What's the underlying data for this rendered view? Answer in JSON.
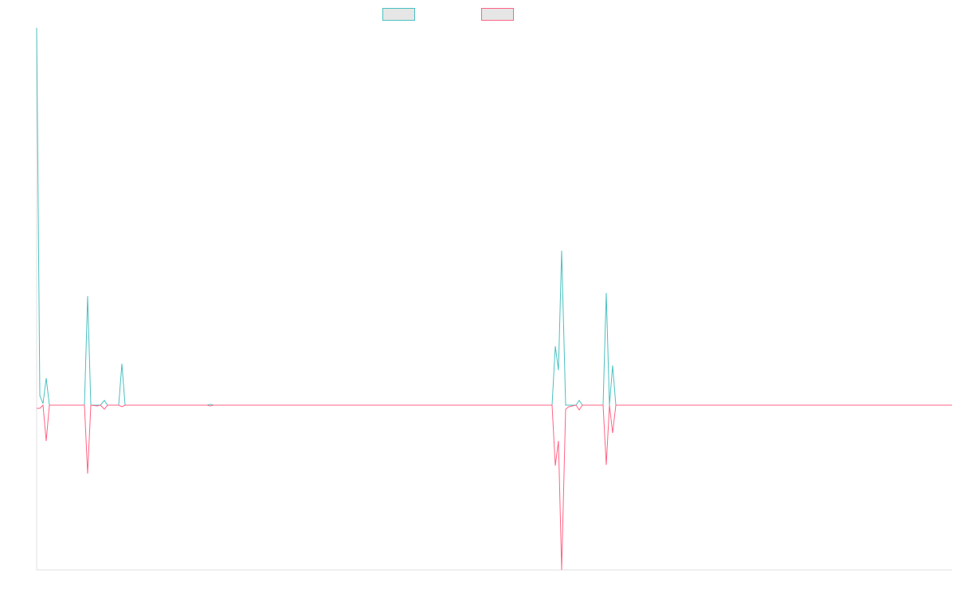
{
  "chart_data": {
    "type": "line",
    "x": [
      0,
      4,
      8,
      12,
      16,
      60,
      64,
      68,
      76,
      80,
      85,
      89,
      103,
      107,
      111,
      214,
      218,
      222,
      647,
      651,
      655,
      659,
      664,
      668,
      677,
      681,
      685,
      711,
      715,
      719,
      723,
      727,
      1149
    ],
    "series": [
      {
        "color": "#4bc0c0",
        "values": [
          474,
          12,
          2,
          34,
          0,
          0,
          137,
          0,
          0,
          0,
          6,
          0,
          0,
          52,
          0,
          0,
          1,
          0,
          0,
          74,
          44,
          194,
          0,
          0,
          0,
          6,
          0,
          0,
          141,
          0,
          50,
          0,
          0
        ]
      },
      {
        "color": "#ff6384",
        "values": [
          -4,
          -4,
          0,
          -45,
          0,
          0,
          -86,
          0,
          -1,
          0,
          -5,
          0,
          0,
          -2,
          0,
          0,
          -1,
          0,
          0,
          -76,
          -45,
          -207,
          -5,
          -2,
          0,
          -6,
          0,
          0,
          -75,
          0,
          -35,
          0,
          0
        ]
      }
    ],
    "xlim": [
      0,
      1149
    ],
    "ylim": [
      -207,
      474
    ]
  }
}
